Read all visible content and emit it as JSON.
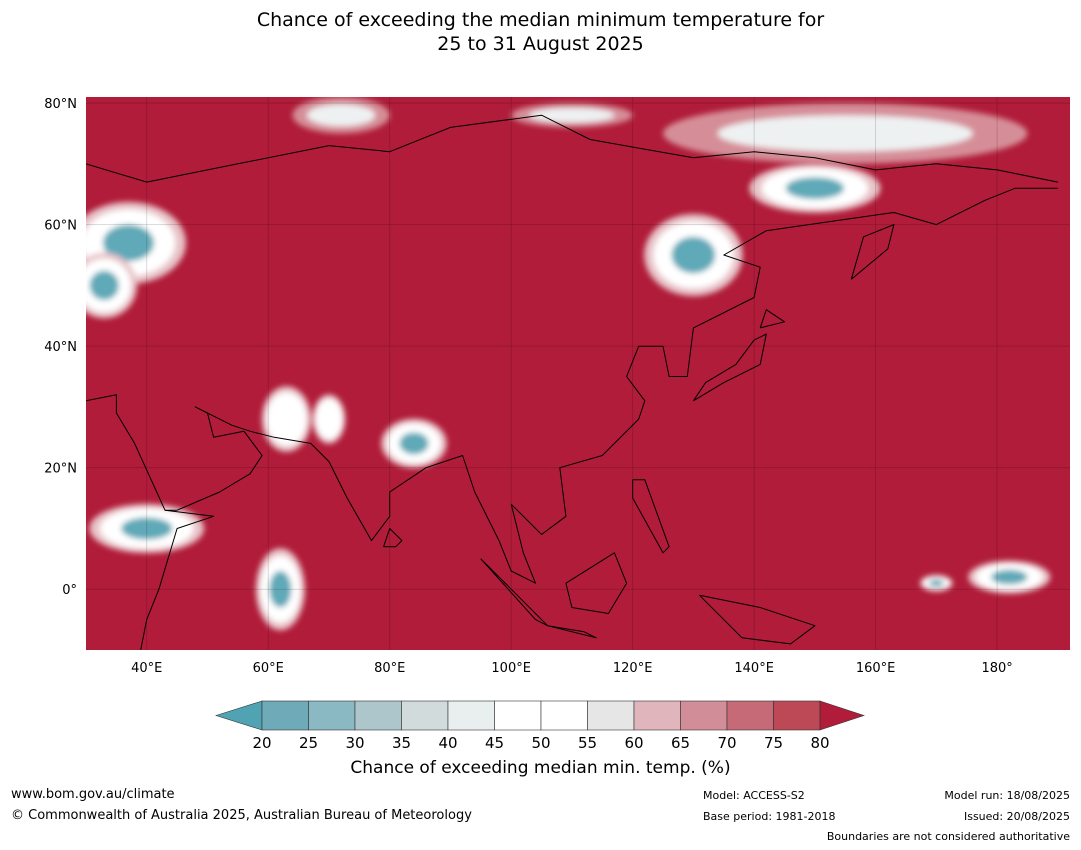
{
  "title_line1": "Chance of exceeding the median minimum temperature for",
  "title_line2": "25 to 31 August 2025",
  "map": {
    "lon_range": [
      30,
      192
    ],
    "lat_range": [
      -10,
      81
    ],
    "lon_ticks": [
      {
        "value": 40,
        "label": "40°E"
      },
      {
        "value": 60,
        "label": "60°E"
      },
      {
        "value": 80,
        "label": "80°E"
      },
      {
        "value": 100,
        "label": "100°E"
      },
      {
        "value": 120,
        "label": "120°E"
      },
      {
        "value": 140,
        "label": "140°E"
      },
      {
        "value": 160,
        "label": "160°E"
      },
      {
        "value": 180,
        "label": "180°"
      }
    ],
    "lat_ticks": [
      {
        "value": 80,
        "label": "80°N"
      },
      {
        "value": 60,
        "label": "60°N"
      },
      {
        "value": 40,
        "label": "40°N"
      },
      {
        "value": 20,
        "label": "20°N"
      },
      {
        "value": 0,
        "label": "0°"
      }
    ],
    "background_color": "#b01c39",
    "cool_regions": [
      {
        "lon": 37,
        "lat": 57,
        "rx": 7,
        "ry": 5,
        "level": "teal"
      },
      {
        "lon": 33,
        "lat": 50,
        "rx": 4,
        "ry": 4,
        "level": "teal"
      },
      {
        "lon": 63,
        "lat": 28,
        "rx": 3,
        "ry": 4,
        "level": "white"
      },
      {
        "lon": 70,
        "lat": 28,
        "rx": 2,
        "ry": 3,
        "level": "white"
      },
      {
        "lon": 84,
        "lat": 24,
        "rx": 4,
        "ry": 3,
        "level": "teal"
      },
      {
        "lon": 130,
        "lat": 55,
        "rx": 6,
        "ry": 5,
        "level": "teal"
      },
      {
        "lon": 150,
        "lat": 66,
        "rx": 8,
        "ry": 3,
        "level": "teal"
      },
      {
        "lon": 40,
        "lat": 10,
        "rx": 7,
        "ry": 3,
        "level": "teal"
      },
      {
        "lon": 62,
        "lat": 0,
        "rx": 3,
        "ry": 5,
        "level": "teal"
      },
      {
        "lon": 170,
        "lat": 1,
        "rx": 2,
        "ry": 1,
        "level": "teal"
      },
      {
        "lon": 182,
        "lat": 2,
        "rx": 5,
        "ry": 2,
        "level": "teal"
      }
    ],
    "warm_light_regions": [
      {
        "lon": 72,
        "lat": 78,
        "rx": 8,
        "ry": 3
      },
      {
        "lon": 110,
        "lat": 78,
        "rx": 10,
        "ry": 2
      },
      {
        "lon": 155,
        "lat": 75,
        "rx": 30,
        "ry": 5
      }
    ]
  },
  "colorbar": {
    "title": "Chance of exceeding median min. temp. (%)",
    "tick_labels": [
      "20",
      "25",
      "30",
      "35",
      "40",
      "45",
      "50",
      "55",
      "60",
      "65",
      "70",
      "75",
      "80"
    ],
    "under_color": "#4fa3b3",
    "over_color": "#b01c39",
    "colors": [
      "#6eaab8",
      "#8ab8c3",
      "#adc6cc",
      "#d2dbdc",
      "#e9eeef",
      "#ffffff",
      "#ffffff",
      "#e6e6e6",
      "#e0b6bc",
      "#d18e98",
      "#c56a76",
      "#bd4856"
    ]
  },
  "footer": {
    "url": "www.bom.gov.au/climate",
    "copyright": "© Commonwealth of Australia 2025, Australian Bureau of Meteorology",
    "model": "Model: ACCESS-S2",
    "base_period": "Base period: 1981-2018",
    "model_run": "Model run: 18/08/2025",
    "issued": "Issued: 20/08/2025",
    "boundaries": "Boundaries are not considered authoritative"
  }
}
